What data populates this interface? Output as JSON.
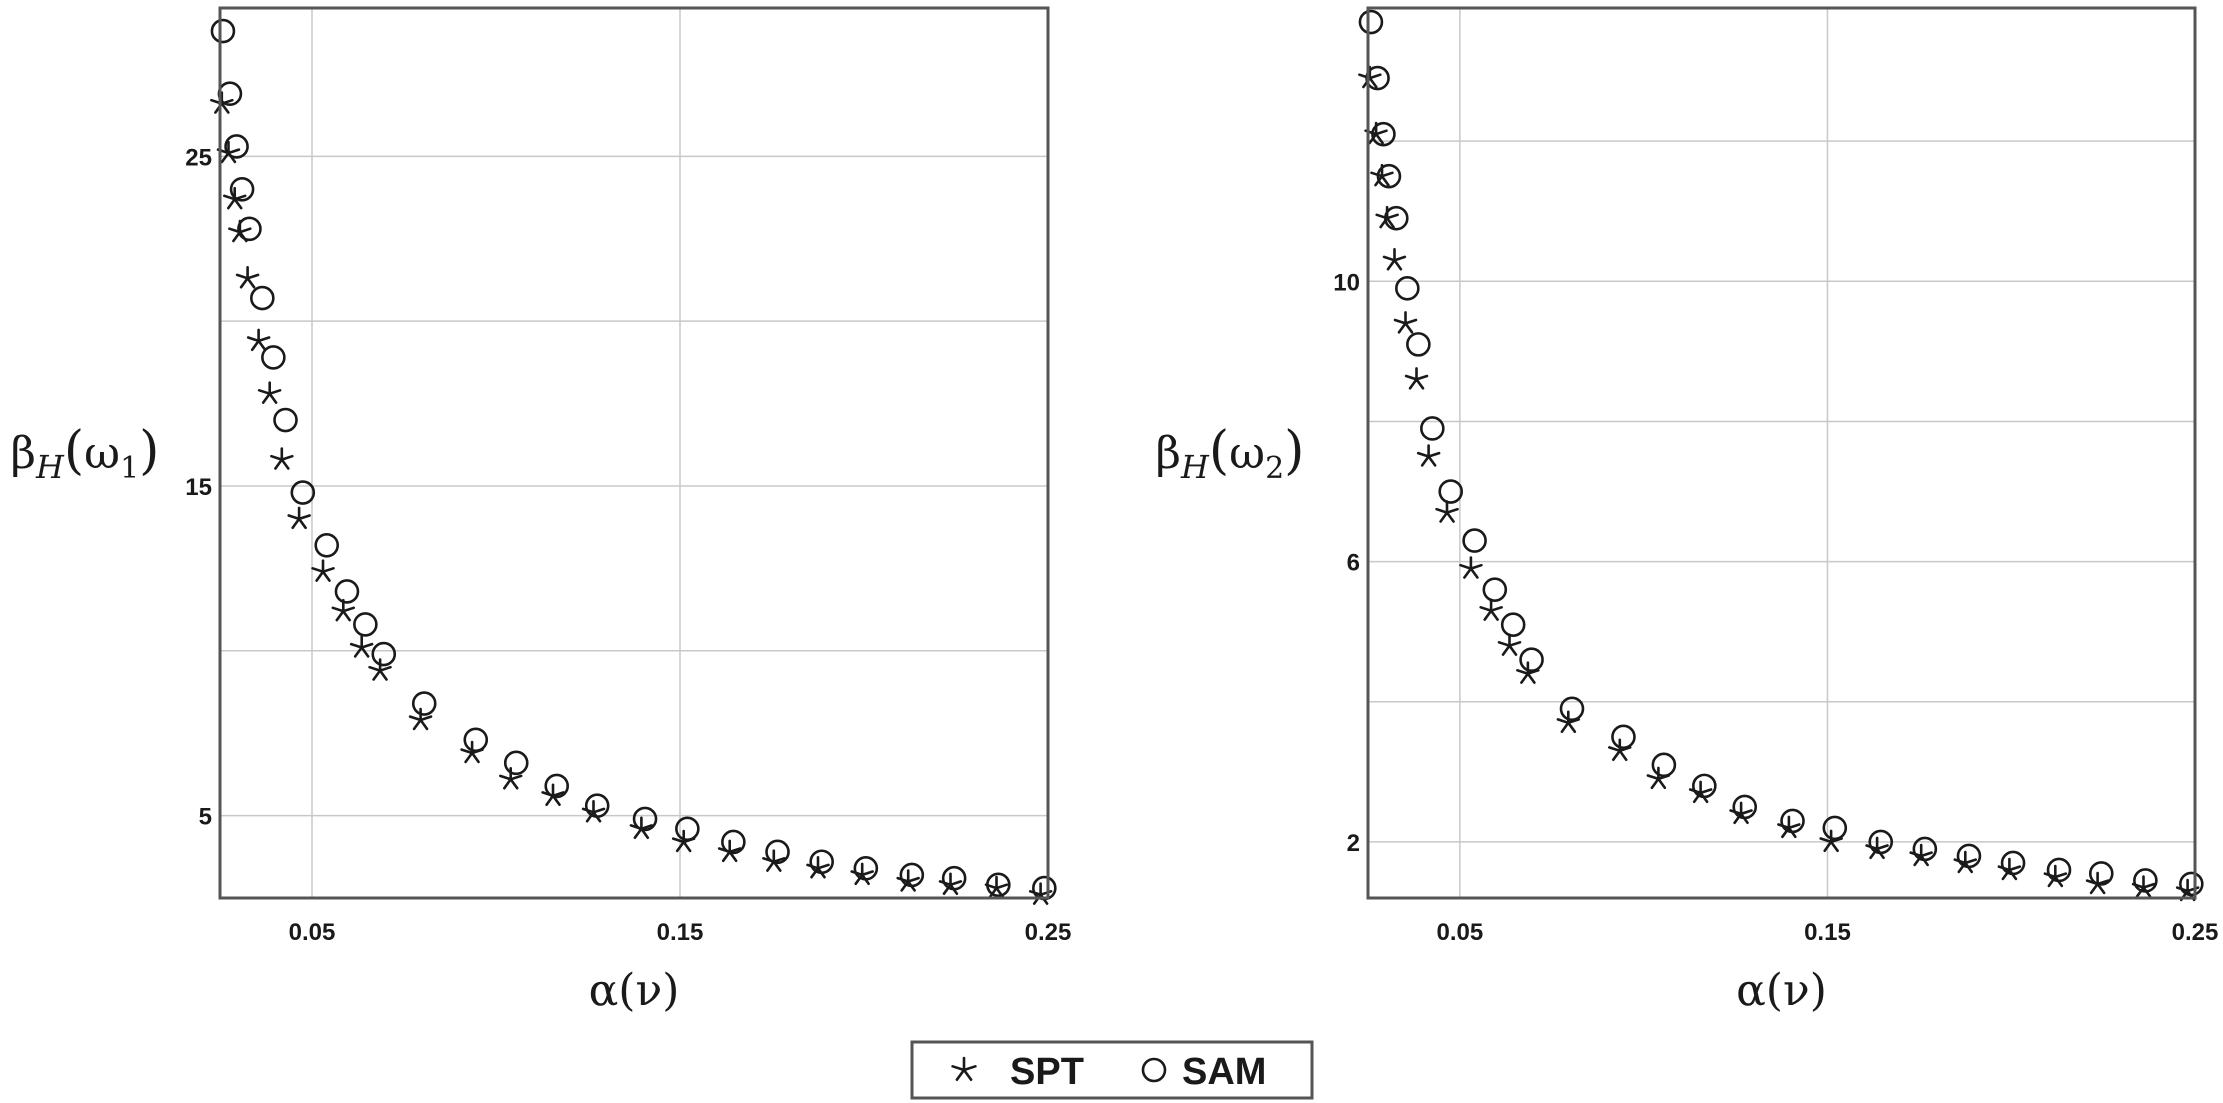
{
  "legend": {
    "items": [
      {
        "label": "SPT",
        "marker": "star"
      },
      {
        "label": "SAM",
        "marker": "circle"
      }
    ]
  },
  "chart_data": [
    {
      "type": "scatter",
      "title": "",
      "xlabel": "α(ν)",
      "ylabel": {
        "base": "β",
        "sub": "H",
        "arg": "ω",
        "argsub": "1"
      },
      "xlim": [
        0.025,
        0.25
      ],
      "ylim": [
        2.5,
        29.5
      ],
      "xticks": [
        0.05,
        0.15,
        0.25
      ],
      "xtick_labels": [
        "0.05",
        "0.15",
        "0.25"
      ],
      "yticks": [
        5,
        15,
        25
      ],
      "ytick_labels": [
        "5",
        "15",
        "25"
      ],
      "xgrid": [
        0.05,
        0.15,
        0.25
      ],
      "ygrid": [
        5,
        10,
        15,
        20,
        25
      ],
      "grid": true,
      "legend_position": "bottom-center",
      "series": [
        {
          "name": "SPT",
          "marker": "star",
          "x": [
            0.0255,
            0.0273,
            0.029,
            0.0304,
            0.0325,
            0.0355,
            0.0385,
            0.0418,
            0.0465,
            0.053,
            0.0585,
            0.0635,
            0.0685,
            0.0795,
            0.0935,
            0.104,
            0.1155,
            0.1265,
            0.1395,
            0.151,
            0.1635,
            0.1755,
            0.1875,
            0.1995,
            0.212,
            0.2235,
            0.236,
            0.248
          ],
          "y": [
            26.6,
            25.1,
            23.7,
            22.7,
            21.3,
            19.4,
            17.8,
            15.8,
            14.0,
            12.4,
            11.2,
            10.1,
            9.4,
            7.9,
            6.9,
            6.1,
            5.6,
            5.1,
            4.6,
            4.2,
            3.9,
            3.6,
            3.4,
            3.2,
            3.0,
            2.9,
            2.8,
            2.6
          ]
        },
        {
          "name": "SAM",
          "marker": "circle",
          "x": [
            0.0258,
            0.0277,
            0.0295,
            0.031,
            0.033,
            0.0365,
            0.0395,
            0.0428,
            0.0475,
            0.054,
            0.0595,
            0.0645,
            0.0695,
            0.0805,
            0.0945,
            0.1055,
            0.1165,
            0.1275,
            0.1405,
            0.152,
            0.1645,
            0.1765,
            0.1885,
            0.2005,
            0.213,
            0.2245,
            0.2365,
            0.249
          ],
          "y": [
            28.8,
            26.9,
            25.3,
            24.0,
            22.8,
            20.7,
            18.9,
            17.0,
            14.8,
            13.2,
            11.8,
            10.8,
            9.9,
            8.4,
            7.3,
            6.6,
            5.9,
            5.3,
            4.9,
            4.6,
            4.2,
            3.9,
            3.6,
            3.4,
            3.2,
            3.1,
            2.9,
            2.8
          ]
        }
      ]
    },
    {
      "type": "scatter",
      "title": "",
      "xlabel": "α(ν)",
      "ylabel": {
        "base": "β",
        "sub": "H",
        "arg": "ω",
        "argsub": "2"
      },
      "xlim": [
        0.025,
        0.25
      ],
      "ylim": [
        1.2,
        13.9
      ],
      "xticks": [
        0.05,
        0.15,
        0.25
      ],
      "xtick_labels": [
        "0.05",
        "0.15",
        "0.25"
      ],
      "yticks": [
        2,
        6,
        10
      ],
      "ytick_labels": [
        "2",
        "6",
        "10"
      ],
      "xgrid": [
        0.05,
        0.15,
        0.25
      ],
      "ygrid": [
        2,
        4,
        6,
        8,
        10,
        12
      ],
      "grid": true,
      "legend_position": "bottom-center",
      "series": [
        {
          "name": "SPT",
          "marker": "star",
          "x": [
            0.0255,
            0.0272,
            0.0288,
            0.0302,
            0.0322,
            0.0352,
            0.0382,
            0.0415,
            0.0465,
            0.053,
            0.0585,
            0.0635,
            0.0685,
            0.0795,
            0.0935,
            0.104,
            0.1155,
            0.1265,
            0.1395,
            0.151,
            0.1635,
            0.1755,
            0.1875,
            0.1995,
            0.212,
            0.2235,
            0.236,
            0.248
          ],
          "y": [
            12.9,
            12.1,
            11.5,
            10.9,
            10.3,
            9.4,
            8.6,
            7.5,
            6.7,
            5.9,
            5.3,
            4.8,
            4.4,
            3.7,
            3.3,
            2.9,
            2.7,
            2.4,
            2.2,
            2.0,
            1.9,
            1.8,
            1.7,
            1.6,
            1.5,
            1.4,
            1.35,
            1.3
          ]
        },
        {
          "name": "SAM",
          "marker": "circle",
          "x": [
            0.0258,
            0.0276,
            0.0292,
            0.0307,
            0.0327,
            0.0357,
            0.0387,
            0.0425,
            0.0475,
            0.054,
            0.0595,
            0.0645,
            0.0695,
            0.0805,
            0.0945,
            0.1055,
            0.1165,
            0.1275,
            0.1405,
            0.152,
            0.1645,
            0.1765,
            0.1885,
            0.2005,
            0.213,
            0.2245,
            0.2365,
            0.249
          ],
          "y": [
            13.7,
            12.9,
            12.1,
            11.5,
            10.9,
            9.9,
            9.1,
            7.9,
            7.0,
            6.3,
            5.6,
            5.1,
            4.6,
            3.9,
            3.5,
            3.1,
            2.8,
            2.5,
            2.3,
            2.2,
            2.0,
            1.9,
            1.8,
            1.7,
            1.6,
            1.55,
            1.45,
            1.4
          ]
        }
      ]
    }
  ]
}
